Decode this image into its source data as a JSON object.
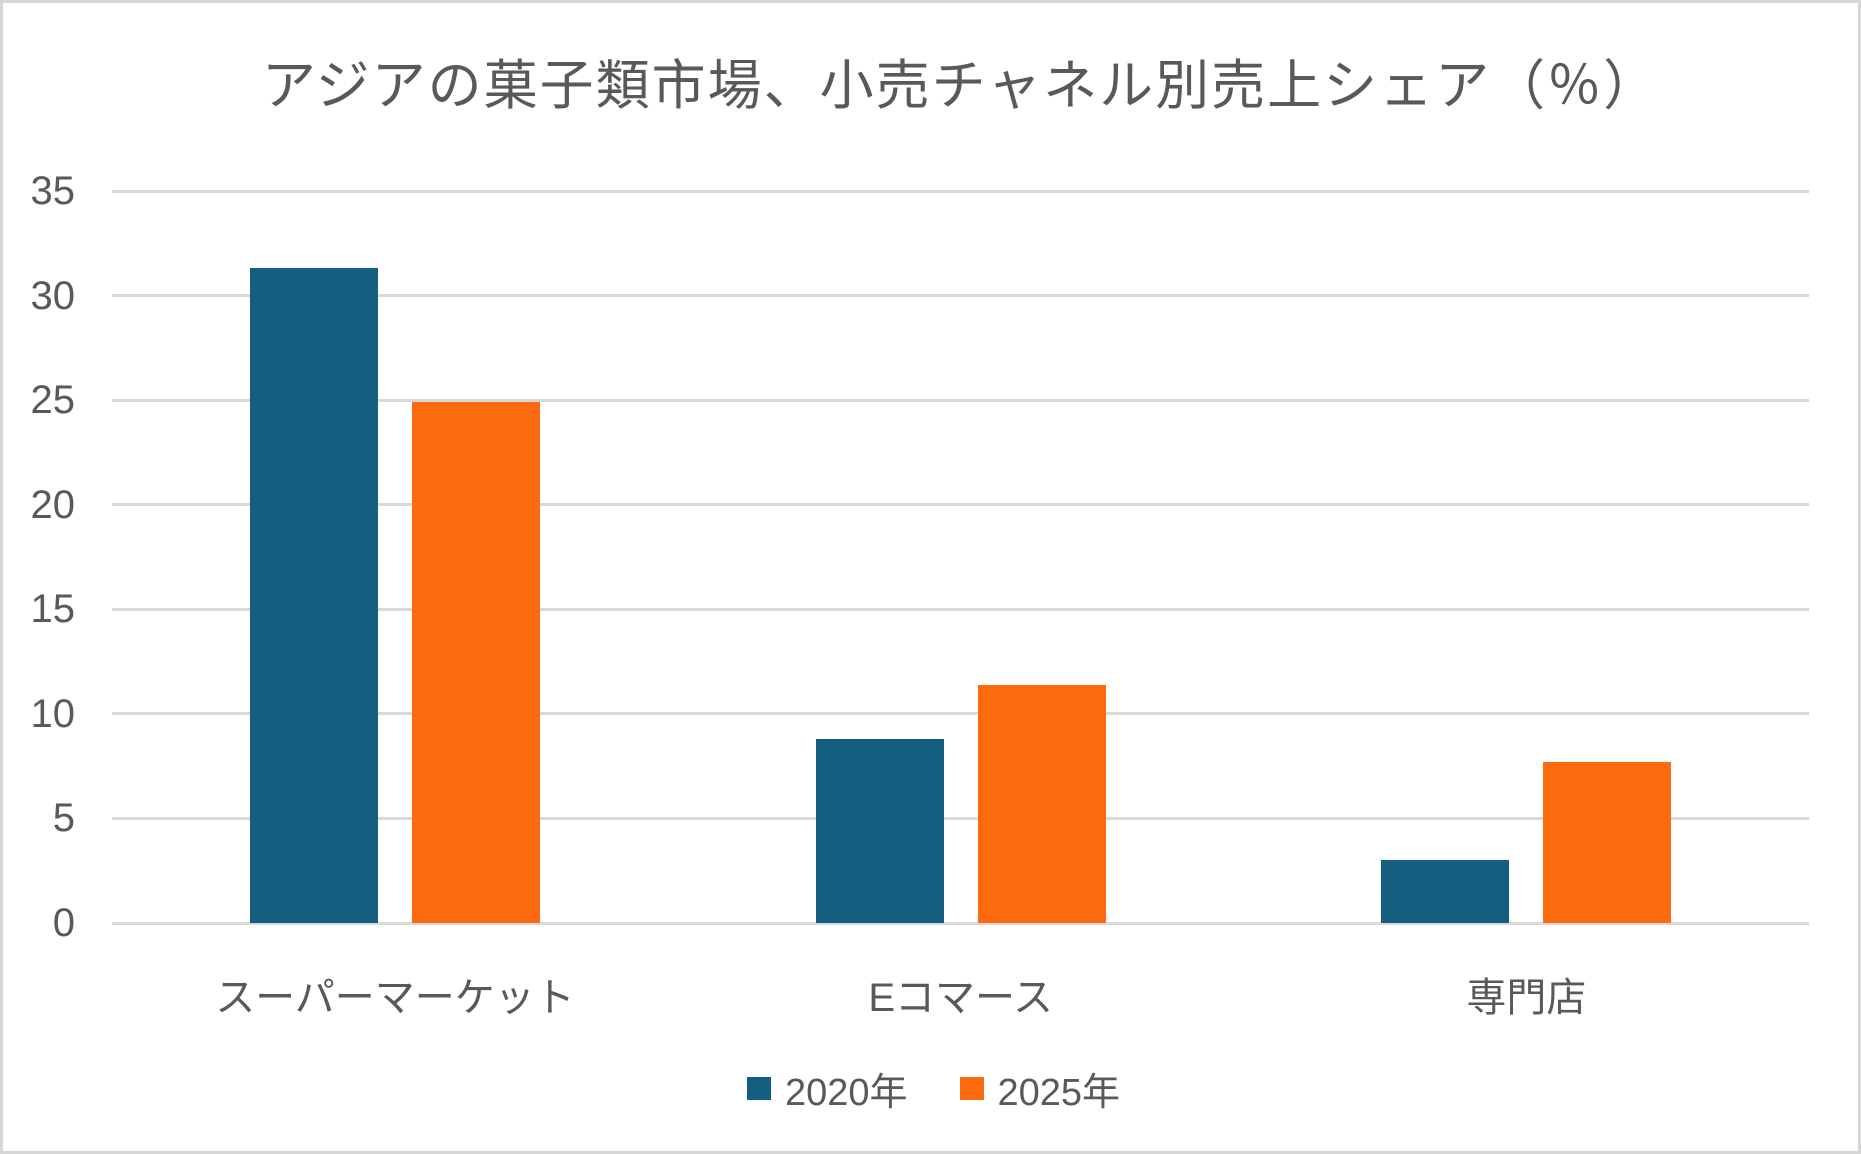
{
  "chart_data": {
    "type": "bar",
    "title": "アジアの菓子類市場、小売チャネル別売上シェア（％）",
    "categories": [
      "スーパーマーケット",
      "Eコマース",
      "専門店"
    ],
    "category_slugs": [
      "supermarket",
      "ecommerce",
      "specialty-store"
    ],
    "series": [
      {
        "name": "2020年",
        "slug": "2020",
        "color": "#155E80",
        "values": [
          31.3,
          8.8,
          3.0
        ]
      },
      {
        "name": "2025年",
        "slug": "2025",
        "color": "#FD6A0F",
        "values": [
          24.9,
          11.4,
          7.7
        ]
      }
    ],
    "xlabel": "",
    "ylabel": "",
    "ylim": [
      0,
      35
    ],
    "y_ticks": [
      35,
      30,
      25,
      20,
      15,
      10,
      5,
      0
    ],
    "grid": true,
    "legend_position": "bottom",
    "colors": {
      "text": "#595959",
      "gridline": "#D9D9D9",
      "background": "#FFFFFF",
      "canvas_border": "#D6D6D6"
    }
  }
}
